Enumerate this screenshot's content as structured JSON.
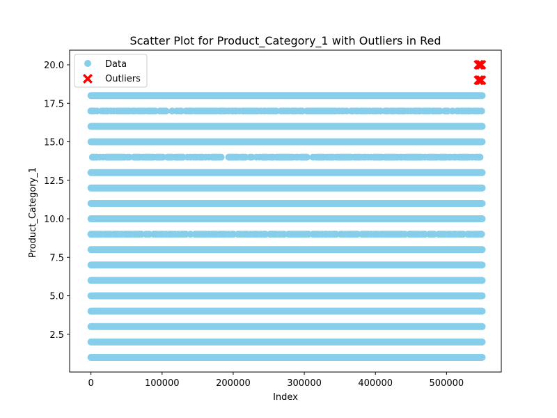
{
  "chart_data": {
    "type": "scatter",
    "title": "Scatter Plot for Product_Category_1 with Outliers in Red",
    "xlabel": "Index",
    "ylabel": "Product_Category_1",
    "xlim": [
      -30000,
      577000
    ],
    "ylim": [
      0.05,
      20.95
    ],
    "xticks": [
      0,
      100000,
      200000,
      300000,
      400000,
      500000
    ],
    "xtick_labels": [
      "0",
      "100000",
      "200000",
      "300000",
      "400000",
      "500000"
    ],
    "yticks": [
      2.5,
      5.0,
      7.5,
      10.0,
      12.5,
      15.0,
      17.5,
      20.0
    ],
    "ytick_labels": [
      "2.5",
      "5.0",
      "7.5",
      "10.0",
      "12.5",
      "15.0",
      "17.5",
      "20.0"
    ],
    "grid": false,
    "legend_position": "top-left",
    "series": [
      {
        "name": "Data",
        "color": "#87ceeb",
        "marker": "circle",
        "x_range": [
          0,
          550068
        ],
        "y_levels": [
          1,
          2,
          3,
          4,
          5,
          6,
          7,
          8,
          9,
          10,
          11,
          12,
          13,
          14,
          15,
          16,
          17,
          18
        ],
        "sparse_levels": [
          9,
          17,
          14
        ]
      },
      {
        "name": "Outliers",
        "color": "#ff0000",
        "marker": "x",
        "x_range": [
          545000,
          550068
        ],
        "y_levels": [
          19,
          20
        ]
      }
    ]
  }
}
